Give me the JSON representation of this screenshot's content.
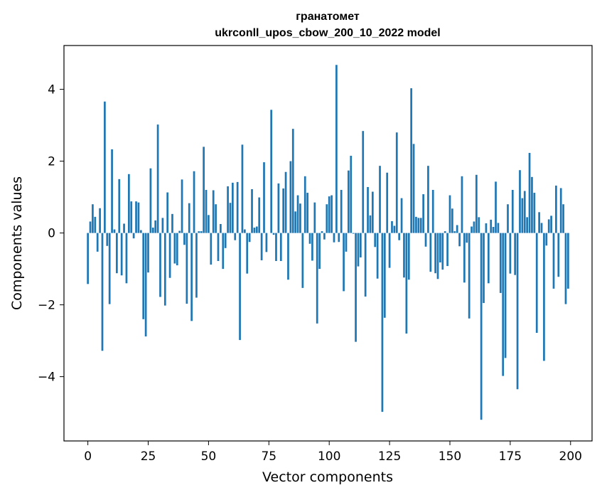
{
  "chart_data": {
    "type": "bar",
    "title": "гранатомет",
    "subtitle": "ukrconll_upos_cbow_200_10_2022 model",
    "xlabel": "Vector components",
    "ylabel": "Components values",
    "xlim": [
      -9.9,
      208.9
    ],
    "ylim": [
      -5.79,
      5.22
    ],
    "xticks": [
      0,
      25,
      50,
      75,
      100,
      125,
      150,
      175,
      200
    ],
    "yticks": [
      -4,
      -2,
      0,
      2,
      4
    ],
    "ytick_labels": [
      "−4",
      "−2",
      "0",
      "2",
      "4"
    ],
    "grid": false,
    "bar_color": "#1f77b4",
    "x": [
      0,
      1,
      2,
      3,
      4,
      5,
      6,
      7,
      8,
      9,
      10,
      11,
      12,
      13,
      14,
      15,
      16,
      17,
      18,
      19,
      20,
      21,
      22,
      23,
      24,
      25,
      26,
      27,
      28,
      29,
      30,
      31,
      32,
      33,
      34,
      35,
      36,
      37,
      38,
      39,
      40,
      41,
      42,
      43,
      44,
      45,
      46,
      47,
      48,
      49,
      50,
      51,
      52,
      53,
      54,
      55,
      56,
      57,
      58,
      59,
      60,
      61,
      62,
      63,
      64,
      65,
      66,
      67,
      68,
      69,
      70,
      71,
      72,
      73,
      74,
      75,
      76,
      77,
      78,
      79,
      80,
      81,
      82,
      83,
      84,
      85,
      86,
      87,
      88,
      89,
      90,
      91,
      92,
      93,
      94,
      95,
      96,
      97,
      98,
      99,
      100,
      101,
      102,
      103,
      104,
      105,
      106,
      107,
      108,
      109,
      110,
      111,
      112,
      113,
      114,
      115,
      116,
      117,
      118,
      119,
      120,
      121,
      122,
      123,
      124,
      125,
      126,
      127,
      128,
      129,
      130,
      131,
      132,
      133,
      134,
      135,
      136,
      137,
      138,
      139,
      140,
      141,
      142,
      143,
      144,
      145,
      146,
      147,
      148,
      149,
      150,
      151,
      152,
      153,
      154,
      155,
      156,
      157,
      158,
      159,
      160,
      161,
      162,
      163,
      164,
      165,
      166,
      167,
      168,
      169,
      170,
      171,
      172,
      173,
      174,
      175,
      176,
      177,
      178,
      179,
      180,
      181,
      182,
      183,
      184,
      185,
      186,
      187,
      188,
      189,
      190,
      191,
      192,
      193,
      194,
      195,
      196,
      197,
      198,
      199
    ],
    "values": [
      -1.42,
      0.32,
      0.8,
      0.45,
      -0.52,
      0.69,
      -3.28,
      3.66,
      -0.36,
      -1.98,
      2.33,
      0.1,
      -1.12,
      1.5,
      -1.18,
      0.26,
      -1.4,
      1.64,
      0.88,
      -0.15,
      0.88,
      0.85,
      0.08,
      -2.4,
      -2.88,
      -1.1,
      1.8,
      0.15,
      0.35,
      3.02,
      -1.78,
      0.42,
      -2.02,
      1.13,
      -1.25,
      0.53,
      -0.85,
      -0.9,
      0.06,
      1.49,
      -0.33,
      -1.97,
      0.83,
      -2.45,
      1.72,
      -1.8,
      0.05,
      0.05,
      2.4,
      1.2,
      0.5,
      -0.88,
      1.19,
      0.8,
      -0.78,
      0.25,
      -1.0,
      -0.42,
      1.3,
      0.84,
      1.4,
      -0.2,
      1.42,
      -2.98,
      2.46,
      0.1,
      -1.13,
      -0.25,
      1.22,
      0.15,
      0.18,
      0.99,
      -0.76,
      1.97,
      -0.53,
      0.0,
      3.43,
      -0.05,
      -0.78,
      1.38,
      -0.78,
      1.24,
      1.7,
      -1.3,
      2.0,
      2.9,
      0.6,
      1.05,
      0.82,
      -1.53,
      1.58,
      1.12,
      -0.3,
      -0.77,
      0.85,
      -2.52,
      -1.0,
      0.05,
      -0.18,
      0.8,
      1.02,
      1.05,
      -0.26,
      4.68,
      -0.25,
      1.2,
      -1.62,
      -0.52,
      1.74,
      2.15,
      -0.02,
      -3.03,
      -0.93,
      -0.68,
      2.84,
      -1.77,
      1.28,
      0.49,
      1.15,
      -0.39,
      -1.27,
      1.87,
      -4.98,
      -2.36,
      1.68,
      -0.97,
      0.33,
      0.2,
      2.8,
      -0.2,
      0.97,
      -1.24,
      -2.8,
      -1.3,
      4.03,
      2.48,
      0.45,
      0.42,
      0.42,
      1.08,
      -0.38,
      1.87,
      -1.08,
      1.2,
      -1.12,
      -1.28,
      -0.82,
      -1.02,
      0.05,
      -0.92,
      1.05,
      0.68,
      0.05,
      0.22,
      -0.37,
      1.58,
      -1.38,
      -0.27,
      -2.38,
      0.18,
      0.32,
      1.62,
      0.44,
      -5.2,
      -1.95,
      0.27,
      -1.4,
      0.37,
      0.17,
      1.43,
      0.28,
      -1.67,
      -3.98,
      -3.48,
      0.8,
      -1.13,
      1.2,
      -1.17,
      -4.35,
      1.75,
      0.97,
      1.17,
      0.44,
      2.23,
      1.56,
      1.12,
      -2.78,
      0.58,
      0.28,
      -3.56,
      -0.35,
      0.38,
      0.48,
      -1.55,
      1.32,
      -1.22,
      1.25,
      0.8,
      -1.98,
      -1.55
    ]
  }
}
